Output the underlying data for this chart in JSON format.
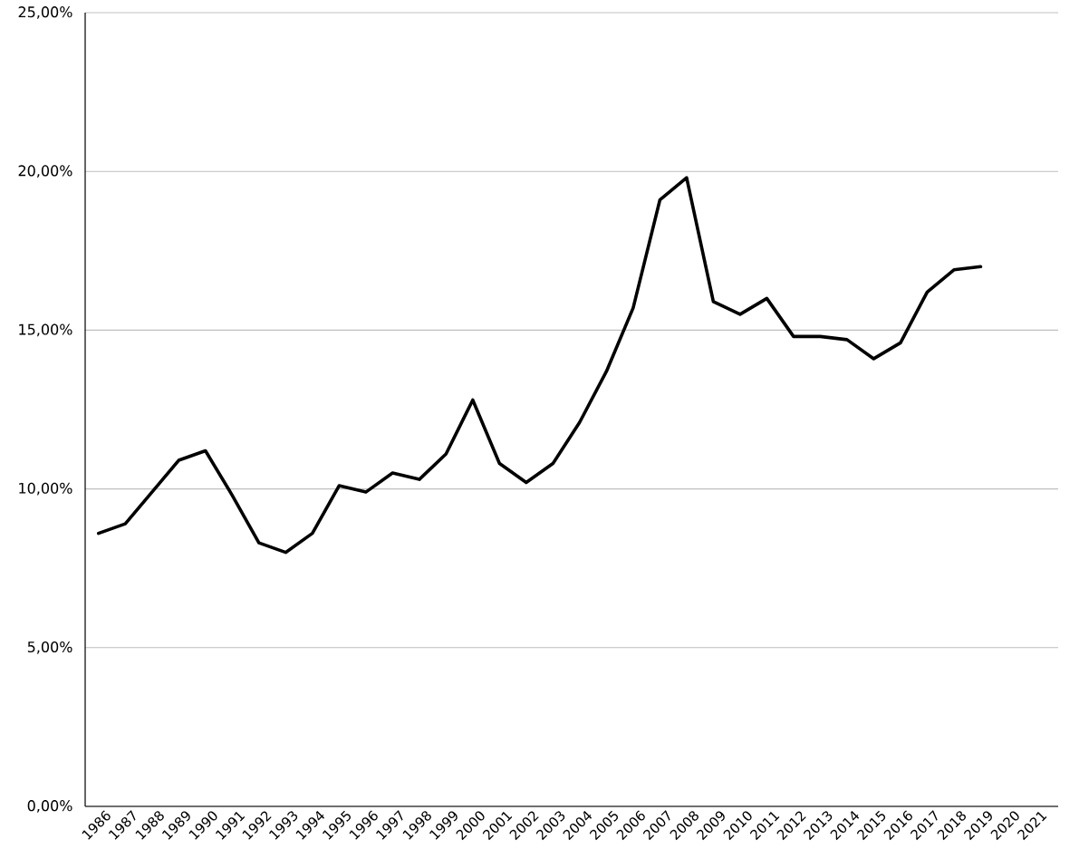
{
  "chart_data": {
    "type": "line",
    "categories": [
      "1986",
      "1987",
      "1988",
      "1989",
      "1990",
      "1991",
      "1992",
      "1993",
      "1994",
      "1995",
      "1996",
      "1997",
      "1998",
      "1999",
      "2000",
      "2001",
      "2002",
      "2003",
      "2004",
      "2005",
      "2006",
      "2007",
      "2008",
      "2009",
      "2010",
      "2011",
      "2012",
      "2013",
      "2014",
      "2015",
      "2016",
      "2017",
      "2018",
      "2019",
      "2020",
      "2021"
    ],
    "values": [
      8.6,
      8.9,
      9.9,
      10.9,
      11.2,
      9.8,
      8.3,
      8.0,
      8.6,
      10.1,
      9.9,
      10.5,
      10.3,
      11.1,
      12.8,
      10.8,
      10.2,
      10.8,
      12.1,
      13.7,
      15.7,
      19.1,
      19.8,
      15.9,
      15.5,
      16.0,
      14.8,
      14.8,
      14.7,
      14.1,
      14.6,
      16.2,
      16.9,
      17.0,
      null,
      null
    ],
    "color": "#000000",
    "ylim": [
      0,
      25
    ],
    "yticks": [
      {
        "value": 0,
        "label": "0,00%"
      },
      {
        "value": 5,
        "label": "5,00%"
      },
      {
        "value": 10,
        "label": "10,00%"
      },
      {
        "value": 15,
        "label": "15,00%"
      },
      {
        "value": 20,
        "label": "20,00%"
      },
      {
        "value": 25,
        "label": "25,00%"
      }
    ],
    "grid": "y",
    "line_style": "solid"
  }
}
